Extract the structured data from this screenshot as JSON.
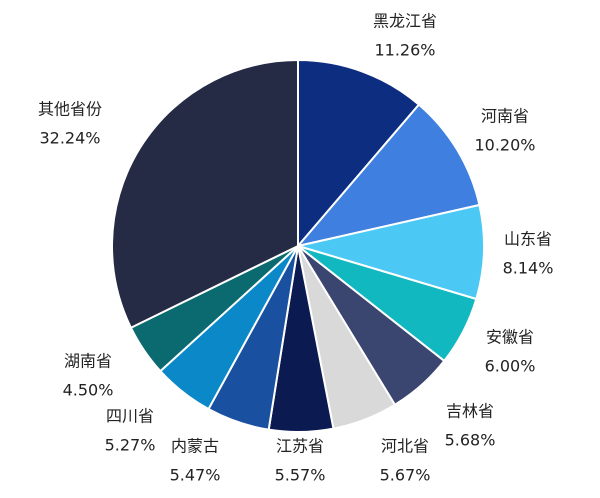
{
  "chart_data": {
    "type": "pie",
    "categories": [
      "黑龙江省",
      "河南省",
      "山东省",
      "安徽省",
      "吉林省",
      "河北省",
      "江苏省",
      "内蒙古",
      "四川省",
      "湖南省",
      "其他省份"
    ],
    "values": [
      11.26,
      10.2,
      8.14,
      6.0,
      5.68,
      5.67,
      5.57,
      5.47,
      5.27,
      4.5,
      32.24
    ],
    "value_labels": [
      "11.26%",
      "10.20%",
      "8.14%",
      "6.00%",
      "5.68%",
      "5.67%",
      "5.57%",
      "5.47%",
      "5.27%",
      "4.50%",
      "32.24%"
    ],
    "colors": [
      "#0d2d80",
      "#3f7fe0",
      "#4cc8f5",
      "#12b8c0",
      "#3b4670",
      "#d9d9d9",
      "#0b1a50",
      "#1a50a0",
      "#0a88c8",
      "#0a6a70",
      "#252a45"
    ]
  }
}
